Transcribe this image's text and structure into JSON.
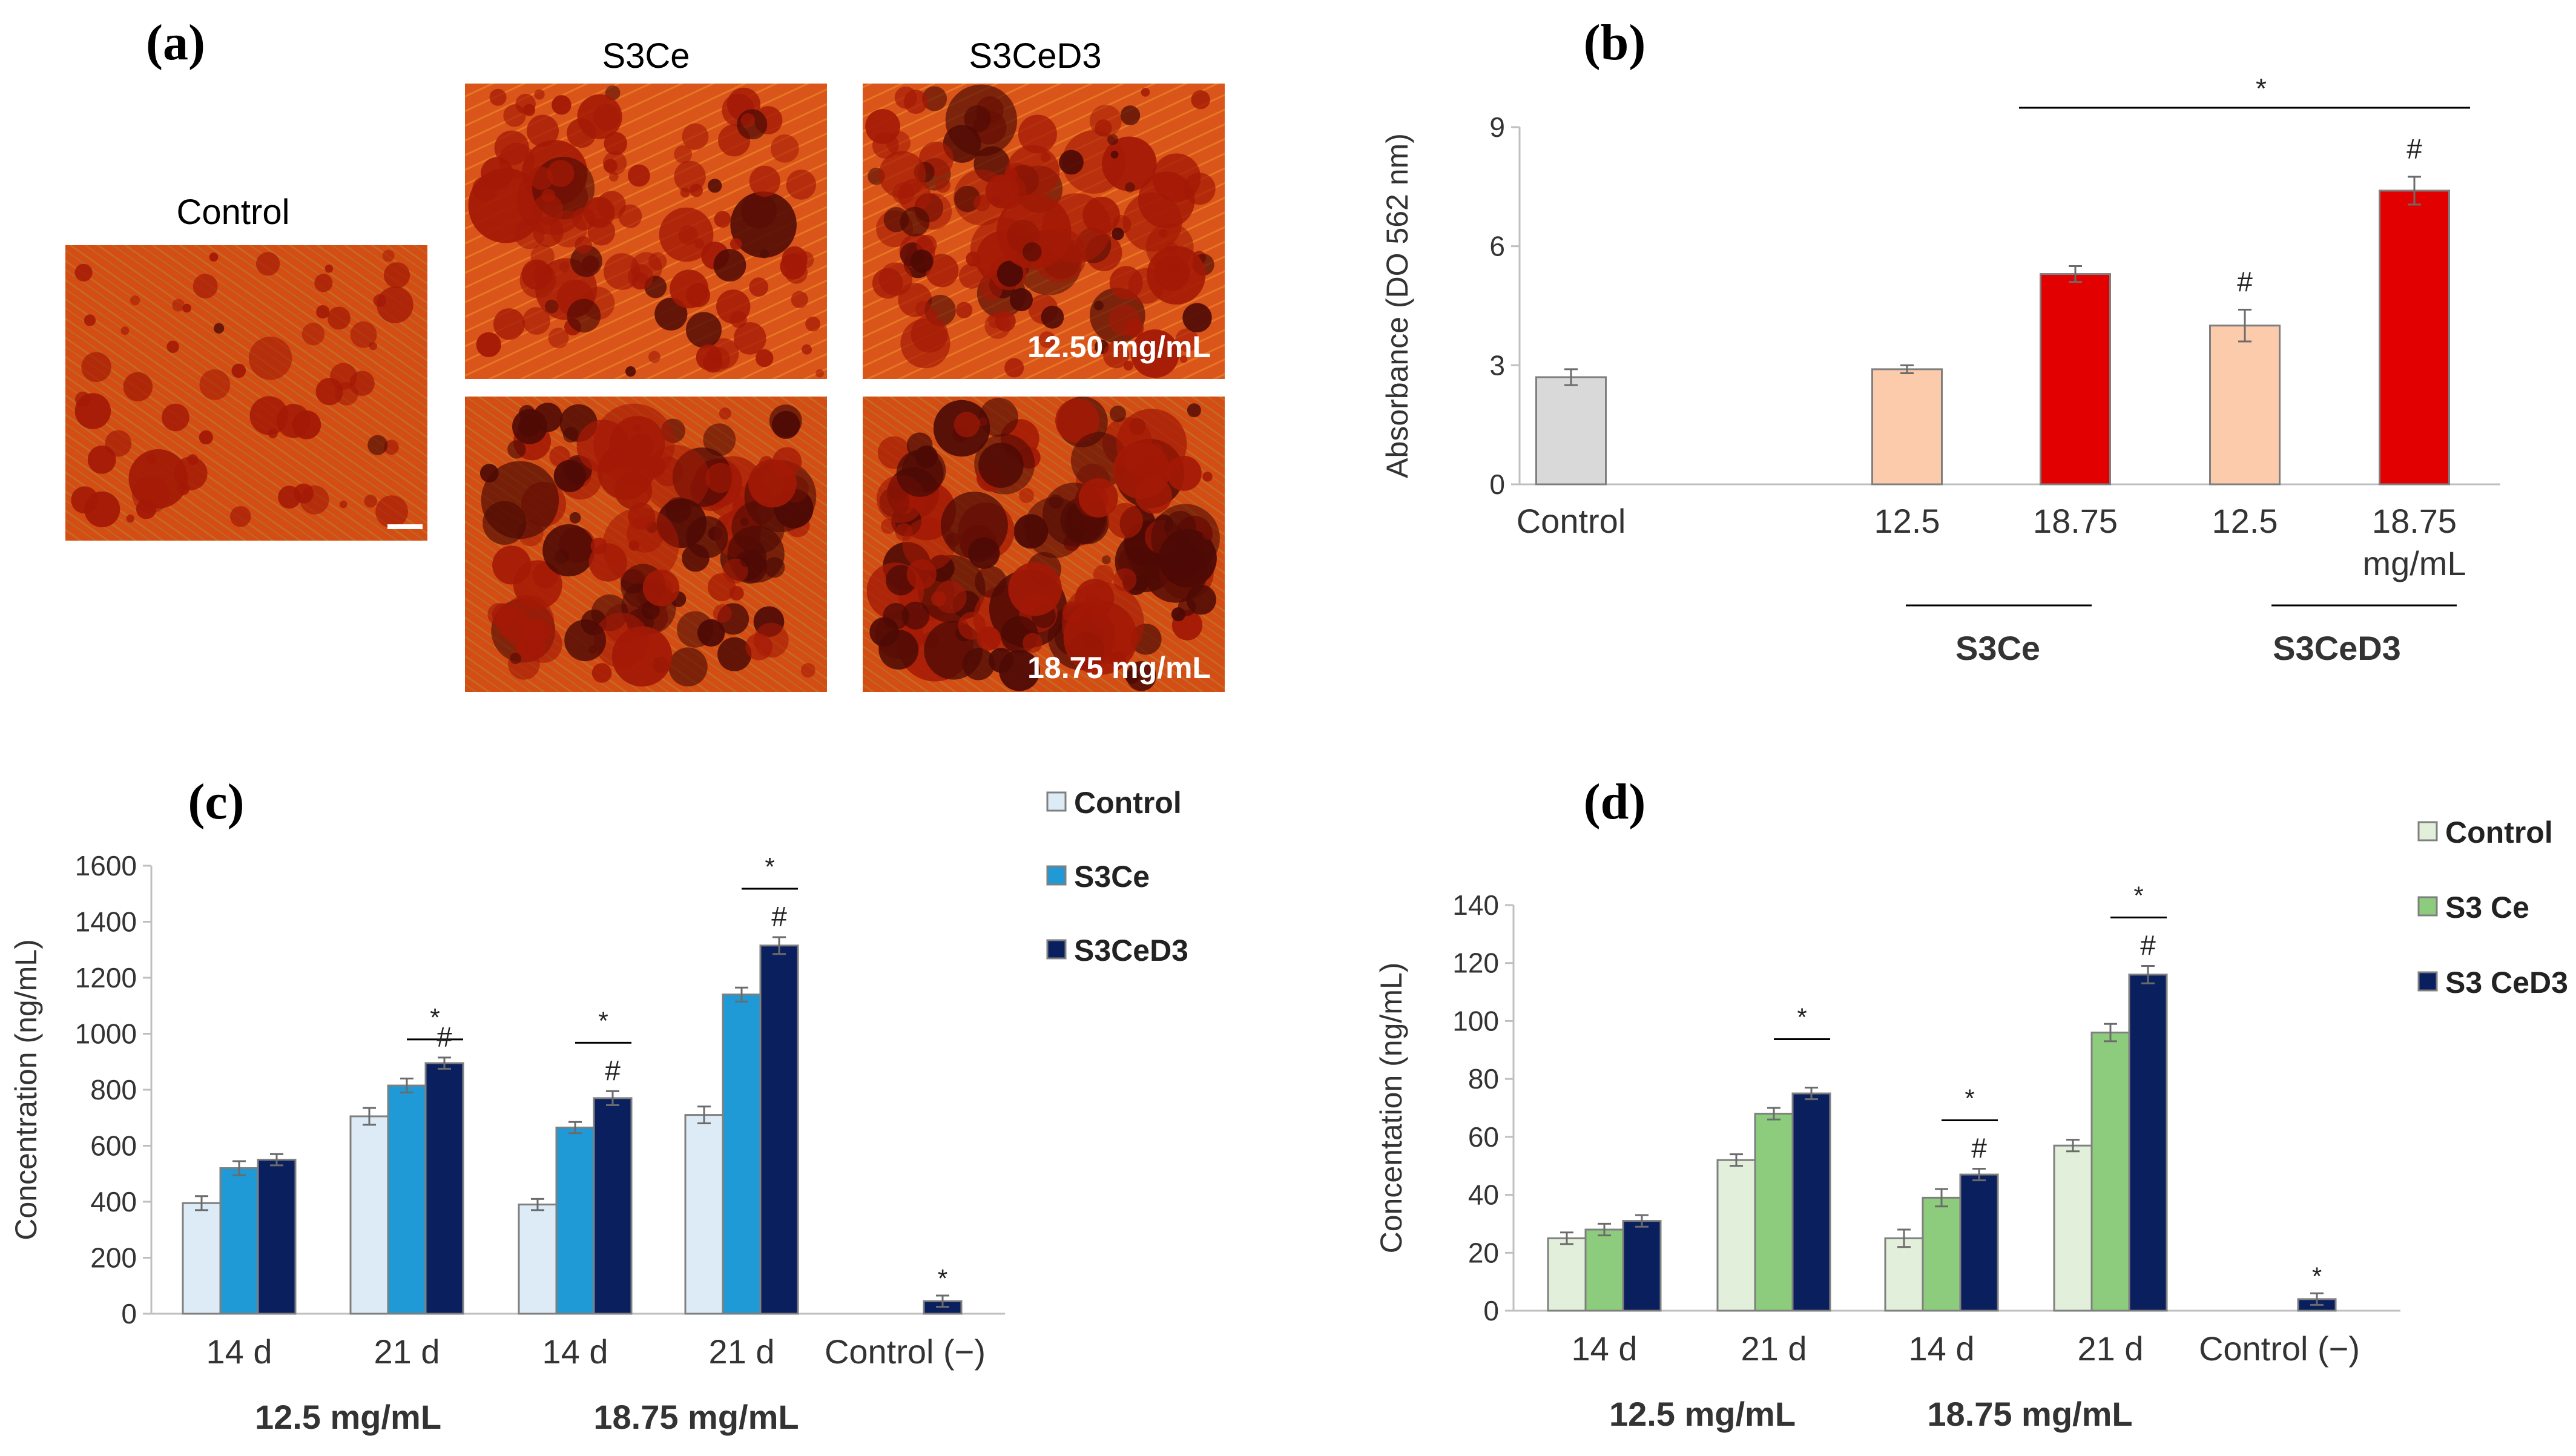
{
  "panel_labels": {
    "a": "(a)",
    "b": "(b)",
    "c": "(c)",
    "d": "(d)"
  },
  "panel_a": {
    "control_label": "Control",
    "col1_label": "S3Ce",
    "col2_label": "S3CeD3",
    "conc_top": "12.50 mg/mL",
    "conc_bottom": "18.75 mg/mL"
  },
  "colors": {
    "b_control": "#d9d9d9",
    "b_low": "#fbcbab",
    "b_high": "#e30000",
    "c_control": "#ddebf7",
    "c_s3ce": "#1f9ad6",
    "c_s3ced3": "#0a1f5e",
    "d_control": "#e2efda",
    "d_s3ce": "#8ccc7c",
    "d_s3ced3": "#0a1f5e",
    "stain_base": "#d44d12",
    "stain_spot": "#a31906",
    "stain_dark": "#4d0a05"
  },
  "chart_data": [
    {
      "id": "b",
      "type": "bar",
      "ylabel": "Absorbance (DO 562 nm)",
      "yticks": [
        "0",
        "3",
        "6",
        "9"
      ],
      "ylim": [
        0,
        9
      ],
      "bars": [
        {
          "label": "Control",
          "value": 2.7,
          "error": 0.2,
          "color_key": "b_control",
          "marker": ""
        },
        {
          "label": "12.5",
          "value": 2.9,
          "error": 0.1,
          "color_key": "b_low",
          "marker": ""
        },
        {
          "label": "18.75",
          "value": 5.3,
          "error": 0.2,
          "color_key": "b_high",
          "marker": ""
        },
        {
          "label": "12.5",
          "value": 4.0,
          "error": 0.4,
          "color_key": "b_low",
          "marker": "#"
        },
        {
          "label": "18.75",
          "value": 7.4,
          "error": 0.35,
          "color_key": "b_high",
          "marker": "#"
        }
      ],
      "unit_label": "mg/mL",
      "groups": [
        "S3Ce",
        "S3CeD3"
      ],
      "significance": "*"
    },
    {
      "id": "c",
      "type": "bar",
      "ylabel": "Concentration (ng/mL)",
      "yticks": [
        "0",
        "200",
        "400",
        "600",
        "800",
        "1000",
        "1200",
        "1400",
        "1600"
      ],
      "ylim": [
        0,
        1600
      ],
      "categories": [
        "14 d",
        "21 d",
        "14 d",
        "21 d",
        "Control (−)"
      ],
      "concentration_groups": [
        "12.5 mg/mL",
        "18.75 mg/mL"
      ],
      "legend": [
        "Control",
        "S3Ce",
        "S3CeD3"
      ],
      "series": [
        {
          "name": "Control",
          "color_key": "c_control",
          "values": [
            395,
            705,
            390,
            710,
            null
          ],
          "errors": [
            25,
            30,
            20,
            30,
            null
          ]
        },
        {
          "name": "S3Ce",
          "color_key": "c_s3ce",
          "values": [
            520,
            815,
            665,
            1140,
            null
          ],
          "errors": [
            25,
            25,
            20,
            25,
            null
          ]
        },
        {
          "name": "S3CeD3",
          "color_key": "c_s3ced3",
          "values": [
            550,
            895,
            770,
            1315,
            45
          ],
          "errors": [
            20,
            20,
            25,
            30,
            20
          ]
        }
      ],
      "significance_marker": "*",
      "hash_marker": "#"
    },
    {
      "id": "d",
      "type": "bar",
      "ylabel": "Concentation (ng/mL)",
      "yticks": [
        "0",
        "20",
        "40",
        "60",
        "80",
        "100",
        "120",
        "140"
      ],
      "ylim": [
        0,
        140
      ],
      "categories": [
        "14 d",
        "21 d",
        "14 d",
        "21 d",
        "Control (−)"
      ],
      "concentration_groups": [
        "12.5 mg/mL",
        "18.75 mg/mL"
      ],
      "legend": [
        "Control",
        "S3 Ce",
        "S3 CeD3"
      ],
      "series": [
        {
          "name": "Control",
          "color_key": "d_control",
          "values": [
            25,
            52,
            25,
            57,
            null
          ],
          "errors": [
            2,
            2,
            3,
            2,
            null
          ]
        },
        {
          "name": "S3Ce",
          "color_key": "d_s3ce",
          "values": [
            28,
            68,
            39,
            96,
            null
          ],
          "errors": [
            2,
            2,
            3,
            3,
            null
          ]
        },
        {
          "name": "S3CeD3",
          "color_key": "d_s3ced3",
          "values": [
            31,
            75,
            47,
            116,
            4
          ],
          "errors": [
            2,
            2,
            2,
            3,
            2
          ]
        }
      ],
      "significance_marker": "*",
      "hash_marker": "#"
    }
  ]
}
